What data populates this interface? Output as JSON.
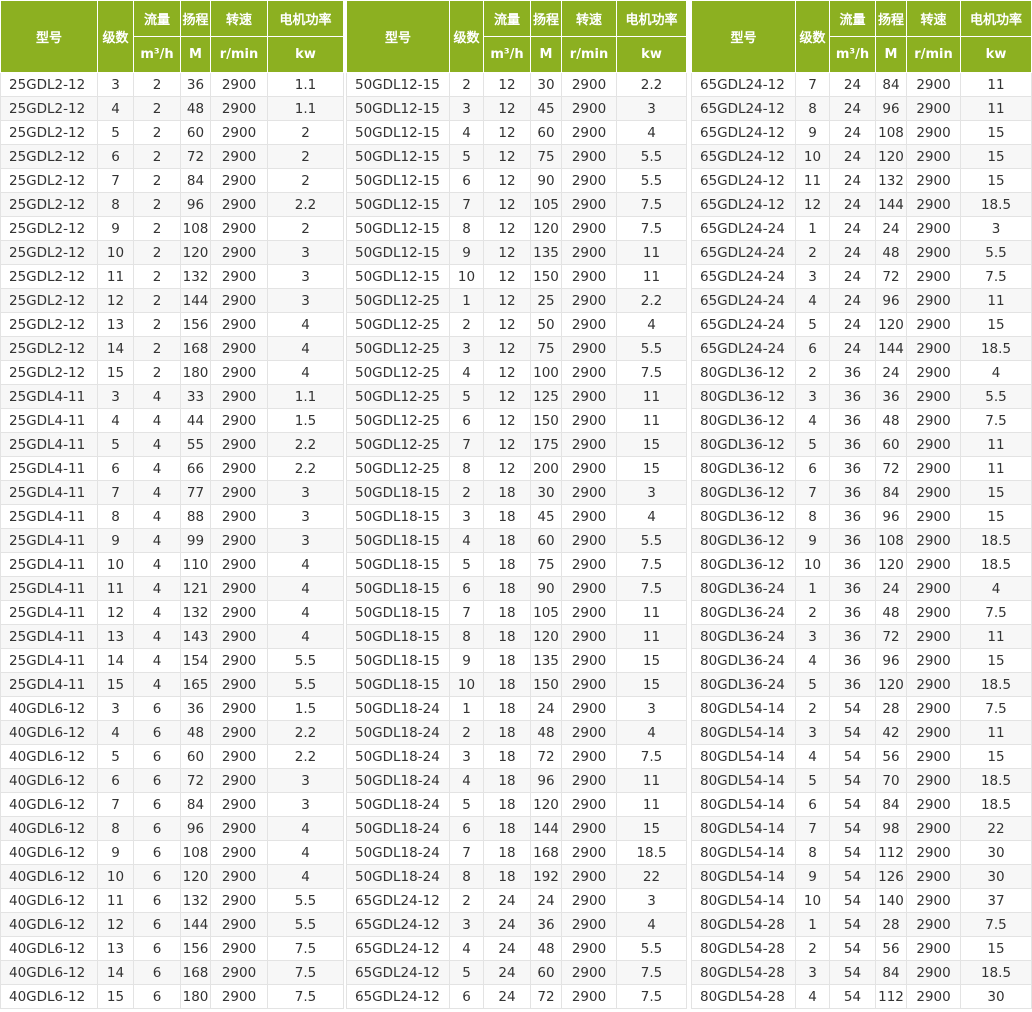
{
  "header": {
    "model": "型号",
    "stages": "级数",
    "flow": "流量",
    "head": "扬程",
    "speed": "转速",
    "power": "电机功率",
    "flow_unit": "m³/h",
    "head_unit": "M",
    "speed_unit": "r/min",
    "power_unit": "kw"
  },
  "colors": {
    "header_bg": "#8cb021",
    "header_text": "#ffffff",
    "alt_row": "#f7f7f7"
  },
  "tables": [
    {
      "rows": [
        [
          "25GDL2-12",
          "3",
          "2",
          "36",
          "2900",
          "1.1"
        ],
        [
          "25GDL2-12",
          "4",
          "2",
          "48",
          "2900",
          "1.1"
        ],
        [
          "25GDL2-12",
          "5",
          "2",
          "60",
          "2900",
          "2"
        ],
        [
          "25GDL2-12",
          "6",
          "2",
          "72",
          "2900",
          "2"
        ],
        [
          "25GDL2-12",
          "7",
          "2",
          "84",
          "2900",
          "2"
        ],
        [
          "25GDL2-12",
          "8",
          "2",
          "96",
          "2900",
          "2.2"
        ],
        [
          "25GDL2-12",
          "9",
          "2",
          "108",
          "2900",
          "2"
        ],
        [
          "25GDL2-12",
          "10",
          "2",
          "120",
          "2900",
          "3"
        ],
        [
          "25GDL2-12",
          "11",
          "2",
          "132",
          "2900",
          "3"
        ],
        [
          "25GDL2-12",
          "12",
          "2",
          "144",
          "2900",
          "3"
        ],
        [
          "25GDL2-12",
          "13",
          "2",
          "156",
          "2900",
          "4"
        ],
        [
          "25GDL2-12",
          "14",
          "2",
          "168",
          "2900",
          "4"
        ],
        [
          "25GDL2-12",
          "15",
          "2",
          "180",
          "2900",
          "4"
        ],
        [
          "25GDL4-11",
          "3",
          "4",
          "33",
          "2900",
          "1.1"
        ],
        [
          "25GDL4-11",
          "4",
          "4",
          "44",
          "2900",
          "1.5"
        ],
        [
          "25GDL4-11",
          "5",
          "4",
          "55",
          "2900",
          "2.2"
        ],
        [
          "25GDL4-11",
          "6",
          "4",
          "66",
          "2900",
          "2.2"
        ],
        [
          "25GDL4-11",
          "7",
          "4",
          "77",
          "2900",
          "3"
        ],
        [
          "25GDL4-11",
          "8",
          "4",
          "88",
          "2900",
          "3"
        ],
        [
          "25GDL4-11",
          "9",
          "4",
          "99",
          "2900",
          "3"
        ],
        [
          "25GDL4-11",
          "10",
          "4",
          "110",
          "2900",
          "4"
        ],
        [
          "25GDL4-11",
          "11",
          "4",
          "121",
          "2900",
          "4"
        ],
        [
          "25GDL4-11",
          "12",
          "4",
          "132",
          "2900",
          "4"
        ],
        [
          "25GDL4-11",
          "13",
          "4",
          "143",
          "2900",
          "4"
        ],
        [
          "25GDL4-11",
          "14",
          "4",
          "154",
          "2900",
          "5.5"
        ],
        [
          "25GDL4-11",
          "15",
          "4",
          "165",
          "2900",
          "5.5"
        ],
        [
          "40GDL6-12",
          "3",
          "6",
          "36",
          "2900",
          "1.5"
        ],
        [
          "40GDL6-12",
          "4",
          "6",
          "48",
          "2900",
          "2.2"
        ],
        [
          "40GDL6-12",
          "5",
          "6",
          "60",
          "2900",
          "2.2"
        ],
        [
          "40GDL6-12",
          "6",
          "6",
          "72",
          "2900",
          "3"
        ],
        [
          "40GDL6-12",
          "7",
          "6",
          "84",
          "2900",
          "3"
        ],
        [
          "40GDL6-12",
          "8",
          "6",
          "96",
          "2900",
          "4"
        ],
        [
          "40GDL6-12",
          "9",
          "6",
          "108",
          "2900",
          "4"
        ],
        [
          "40GDL6-12",
          "10",
          "6",
          "120",
          "2900",
          "4"
        ],
        [
          "40GDL6-12",
          "11",
          "6",
          "132",
          "2900",
          "5.5"
        ],
        [
          "40GDL6-12",
          "12",
          "6",
          "144",
          "2900",
          "5.5"
        ],
        [
          "40GDL6-12",
          "13",
          "6",
          "156",
          "2900",
          "7.5"
        ],
        [
          "40GDL6-12",
          "14",
          "6",
          "168",
          "2900",
          "7.5"
        ],
        [
          "40GDL6-12",
          "15",
          "6",
          "180",
          "2900",
          "7.5"
        ]
      ]
    },
    {
      "rows": [
        [
          "50GDL12-15",
          "2",
          "12",
          "30",
          "2900",
          "2.2"
        ],
        [
          "50GDL12-15",
          "3",
          "12",
          "45",
          "2900",
          "3"
        ],
        [
          "50GDL12-15",
          "4",
          "12",
          "60",
          "2900",
          "4"
        ],
        [
          "50GDL12-15",
          "5",
          "12",
          "75",
          "2900",
          "5.5"
        ],
        [
          "50GDL12-15",
          "6",
          "12",
          "90",
          "2900",
          "5.5"
        ],
        [
          "50GDL12-15",
          "7",
          "12",
          "105",
          "2900",
          "7.5"
        ],
        [
          "50GDL12-15",
          "8",
          "12",
          "120",
          "2900",
          "7.5"
        ],
        [
          "50GDL12-15",
          "9",
          "12",
          "135",
          "2900",
          "11"
        ],
        [
          "50GDL12-15",
          "10",
          "12",
          "150",
          "2900",
          "11"
        ],
        [
          "50GDL12-25",
          "1",
          "12",
          "25",
          "2900",
          "2.2"
        ],
        [
          "50GDL12-25",
          "2",
          "12",
          "50",
          "2900",
          "4"
        ],
        [
          "50GDL12-25",
          "3",
          "12",
          "75",
          "2900",
          "5.5"
        ],
        [
          "50GDL12-25",
          "4",
          "12",
          "100",
          "2900",
          "7.5"
        ],
        [
          "50GDL12-25",
          "5",
          "12",
          "125",
          "2900",
          "11"
        ],
        [
          "50GDL12-25",
          "6",
          "12",
          "150",
          "2900",
          "11"
        ],
        [
          "50GDL12-25",
          "7",
          "12",
          "175",
          "2900",
          "15"
        ],
        [
          "50GDL12-25",
          "8",
          "12",
          "200",
          "2900",
          "15"
        ],
        [
          "50GDL18-15",
          "2",
          "18",
          "30",
          "2900",
          "3"
        ],
        [
          "50GDL18-15",
          "3",
          "18",
          "45",
          "2900",
          "4"
        ],
        [
          "50GDL18-15",
          "4",
          "18",
          "60",
          "2900",
          "5.5"
        ],
        [
          "50GDL18-15",
          "5",
          "18",
          "75",
          "2900",
          "7.5"
        ],
        [
          "50GDL18-15",
          "6",
          "18",
          "90",
          "2900",
          "7.5"
        ],
        [
          "50GDL18-15",
          "7",
          "18",
          "105",
          "2900",
          "11"
        ],
        [
          "50GDL18-15",
          "8",
          "18",
          "120",
          "2900",
          "11"
        ],
        [
          "50GDL18-15",
          "9",
          "18",
          "135",
          "2900",
          "15"
        ],
        [
          "50GDL18-15",
          "10",
          "18",
          "150",
          "2900",
          "15"
        ],
        [
          "50GDL18-24",
          "1",
          "18",
          "24",
          "2900",
          "3"
        ],
        [
          "50GDL18-24",
          "2",
          "18",
          "48",
          "2900",
          "4"
        ],
        [
          "50GDL18-24",
          "3",
          "18",
          "72",
          "2900",
          "7.5"
        ],
        [
          "50GDL18-24",
          "4",
          "18",
          "96",
          "2900",
          "11"
        ],
        [
          "50GDL18-24",
          "5",
          "18",
          "120",
          "2900",
          "11"
        ],
        [
          "50GDL18-24",
          "6",
          "18",
          "144",
          "2900",
          "15"
        ],
        [
          "50GDL18-24",
          "7",
          "18",
          "168",
          "2900",
          "18.5"
        ],
        [
          "50GDL18-24",
          "8",
          "18",
          "192",
          "2900",
          "22"
        ],
        [
          "65GDL24-12",
          "2",
          "24",
          "24",
          "2900",
          "3"
        ],
        [
          "65GDL24-12",
          "3",
          "24",
          "36",
          "2900",
          "4"
        ],
        [
          "65GDL24-12",
          "4",
          "24",
          "48",
          "2900",
          "5.5"
        ],
        [
          "65GDL24-12",
          "5",
          "24",
          "60",
          "2900",
          "7.5"
        ],
        [
          "65GDL24-12",
          "6",
          "24",
          "72",
          "2900",
          "7.5"
        ]
      ]
    },
    {
      "rows": [
        [
          "65GDL24-12",
          "7",
          "24",
          "84",
          "2900",
          "11"
        ],
        [
          "65GDL24-12",
          "8",
          "24",
          "96",
          "2900",
          "11"
        ],
        [
          "65GDL24-12",
          "9",
          "24",
          "108",
          "2900",
          "15"
        ],
        [
          "65GDL24-12",
          "10",
          "24",
          "120",
          "2900",
          "15"
        ],
        [
          "65GDL24-12",
          "11",
          "24",
          "132",
          "2900",
          "15"
        ],
        [
          "65GDL24-12",
          "12",
          "24",
          "144",
          "2900",
          "18.5"
        ],
        [
          "65GDL24-24",
          "1",
          "24",
          "24",
          "2900",
          "3"
        ],
        [
          "65GDL24-24",
          "2",
          "24",
          "48",
          "2900",
          "5.5"
        ],
        [
          "65GDL24-24",
          "3",
          "24",
          "72",
          "2900",
          "7.5"
        ],
        [
          "65GDL24-24",
          "4",
          "24",
          "96",
          "2900",
          "11"
        ],
        [
          "65GDL24-24",
          "5",
          "24",
          "120",
          "2900",
          "15"
        ],
        [
          "65GDL24-24",
          "6",
          "24",
          "144",
          "2900",
          "18.5"
        ],
        [
          "80GDL36-12",
          "2",
          "36",
          "24",
          "2900",
          "4"
        ],
        [
          "80GDL36-12",
          "3",
          "36",
          "36",
          "2900",
          "5.5"
        ],
        [
          "80GDL36-12",
          "4",
          "36",
          "48",
          "2900",
          "7.5"
        ],
        [
          "80GDL36-12",
          "5",
          "36",
          "60",
          "2900",
          "11"
        ],
        [
          "80GDL36-12",
          "6",
          "36",
          "72",
          "2900",
          "11"
        ],
        [
          "80GDL36-12",
          "7",
          "36",
          "84",
          "2900",
          "15"
        ],
        [
          "80GDL36-12",
          "8",
          "36",
          "96",
          "2900",
          "15"
        ],
        [
          "80GDL36-12",
          "9",
          "36",
          "108",
          "2900",
          "18.5"
        ],
        [
          "80GDL36-12",
          "10",
          "36",
          "120",
          "2900",
          "18.5"
        ],
        [
          "80GDL36-24",
          "1",
          "36",
          "24",
          "2900",
          "4"
        ],
        [
          "80GDL36-24",
          "2",
          "36",
          "48",
          "2900",
          "7.5"
        ],
        [
          "80GDL36-24",
          "3",
          "36",
          "72",
          "2900",
          "11"
        ],
        [
          "80GDL36-24",
          "4",
          "36",
          "96",
          "2900",
          "15"
        ],
        [
          "80GDL36-24",
          "5",
          "36",
          "120",
          "2900",
          "18.5"
        ],
        [
          "80GDL54-14",
          "2",
          "54",
          "28",
          "2900",
          "7.5"
        ],
        [
          "80GDL54-14",
          "3",
          "54",
          "42",
          "2900",
          "11"
        ],
        [
          "80GDL54-14",
          "4",
          "54",
          "56",
          "2900",
          "15"
        ],
        [
          "80GDL54-14",
          "5",
          "54",
          "70",
          "2900",
          "18.5"
        ],
        [
          "80GDL54-14",
          "6",
          "54",
          "84",
          "2900",
          "18.5"
        ],
        [
          "80GDL54-14",
          "7",
          "54",
          "98",
          "2900",
          "22"
        ],
        [
          "80GDL54-14",
          "8",
          "54",
          "112",
          "2900",
          "30"
        ],
        [
          "80GDL54-14",
          "9",
          "54",
          "126",
          "2900",
          "30"
        ],
        [
          "80GDL54-14",
          "10",
          "54",
          "140",
          "2900",
          "37"
        ],
        [
          "80GDL54-28",
          "1",
          "54",
          "28",
          "2900",
          "7.5"
        ],
        [
          "80GDL54-28",
          "2",
          "54",
          "56",
          "2900",
          "15"
        ],
        [
          "80GDL54-28",
          "3",
          "54",
          "84",
          "2900",
          "18.5"
        ],
        [
          "80GDL54-28",
          "4",
          "54",
          "112",
          "2900",
          "30"
        ]
      ]
    }
  ]
}
